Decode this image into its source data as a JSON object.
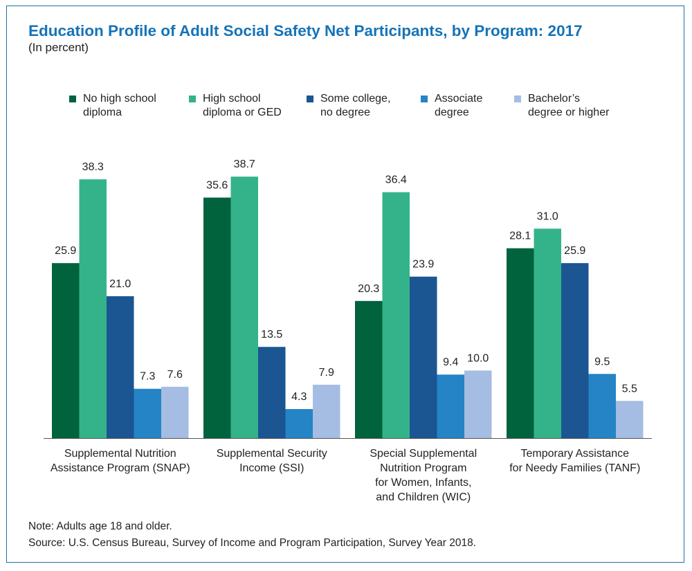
{
  "title": "Education Profile of Adult Social Safety Net Participants, by Program: 2017",
  "subtitle": "(In percent)",
  "note": "Note: Adults age 18 and older.",
  "source": "Source: U.S. Census Bureau, Survey of Income and Program Participation, Survey Year 2018.",
  "colors": [
    "#00633e",
    "#34b38b",
    "#1b5592",
    "#2584c6",
    "#a5bde2"
  ],
  "chart_data": {
    "type": "bar",
    "title": "Education Profile of Adult Social Safety Net Participants, by Program: 2017",
    "subtitle": "(In percent)",
    "xlabel": "",
    "ylabel": "",
    "ylim": [
      0,
      42
    ],
    "grid": false,
    "legend_position": "top",
    "categories": [
      [
        "Supplemental Nutrition",
        "Assistance Program (SNAP)"
      ],
      [
        "Supplemental Security",
        "Income (SSI)"
      ],
      [
        "Special Supplemental",
        "Nutrition Program",
        "for Women, Infants,",
        "and Children (WIC)"
      ],
      [
        "Temporary Assistance",
        "for Needy Families (TANF)"
      ]
    ],
    "series": [
      {
        "name": [
          "No high school",
          "diploma"
        ],
        "values": [
          25.9,
          35.6,
          20.3,
          28.1
        ]
      },
      {
        "name": [
          "High school",
          "diploma or GED"
        ],
        "values": [
          38.3,
          38.7,
          36.4,
          31.0
        ]
      },
      {
        "name": [
          "Some college,",
          "no degree"
        ],
        "values": [
          21.0,
          13.5,
          23.9,
          25.9
        ]
      },
      {
        "name": [
          "Associate",
          "degree"
        ],
        "values": [
          7.3,
          4.3,
          9.4,
          9.5
        ]
      },
      {
        "name": [
          "Bachelor’s",
          "degree or higher"
        ],
        "values": [
          7.6,
          7.9,
          10.0,
          5.5
        ]
      }
    ]
  }
}
